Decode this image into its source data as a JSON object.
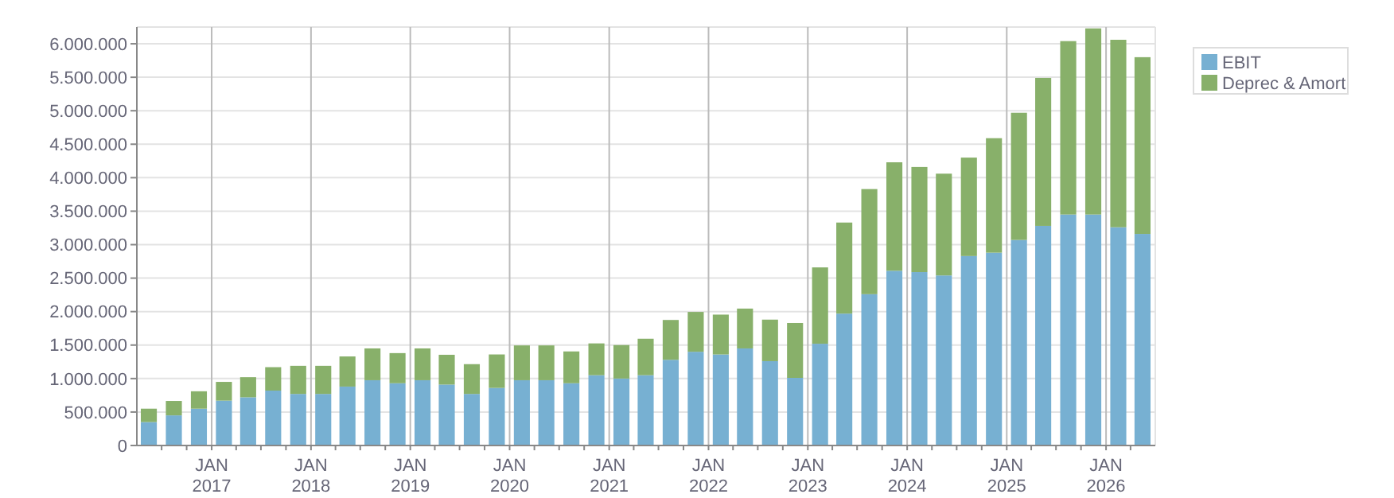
{
  "chart_data": {
    "type": "bar",
    "stacked": true,
    "x": [
      "2016-05-15",
      "2016-08-15",
      "2016-11-15",
      "2017-02-15",
      "2017-05-15",
      "2017-08-15",
      "2017-11-15",
      "2018-02-15",
      "2018-05-15",
      "2018-08-15",
      "2018-11-15",
      "2019-02-15",
      "2019-05-15",
      "2019-08-15",
      "2019-11-15",
      "2020-02-15",
      "2020-05-15",
      "2020-08-15",
      "2020-11-15",
      "2021-02-15",
      "2021-05-15",
      "2021-08-15",
      "2021-11-15",
      "2022-02-15",
      "2022-05-15",
      "2022-08-15",
      "2022-11-15",
      "2023-02-15",
      "2023-05-15",
      "2023-08-15",
      "2023-11-15",
      "2024-02-15",
      "2024-05-15",
      "2024-08-15",
      "2024-11-15",
      "2025-02-15",
      "2025-05-15",
      "2025-08-15",
      "2025-11-15",
      "2026-02-15",
      "2026-05-15"
    ],
    "series": [
      {
        "name": "EBIT",
        "color": "#77b0d2",
        "values": [
          350000,
          450000,
          550000,
          670000,
          720000,
          820000,
          770000,
          770000,
          880000,
          975000,
          930000,
          975000,
          910000,
          770000,
          860000,
          975000,
          975000,
          930000,
          1050000,
          1000000,
          1050000,
          1280000,
          1400000,
          1360000,
          1450000,
          1260000,
          1010000,
          1520000,
          1970000,
          2260000,
          2610000,
          2590000,
          2540000,
          2830000,
          2880000,
          3070000,
          3280000,
          3450000,
          3450000,
          3260000,
          3160000
        ]
      },
      {
        "name": "Deprec & Amort",
        "color": "#88b06a",
        "values": [
          200000,
          215000,
          260000,
          280000,
          300000,
          350000,
          420000,
          420000,
          450000,
          475000,
          450000,
          475000,
          445000,
          445000,
          500000,
          520000,
          520000,
          475000,
          475000,
          500000,
          545000,
          595000,
          595000,
          595000,
          595000,
          620000,
          820000,
          1140000,
          1360000,
          1570000,
          1620000,
          1570000,
          1520000,
          1470000,
          1710000,
          1900000,
          2210000,
          2590000,
          2780000,
          2800000,
          2640000
        ]
      }
    ],
    "xlim": [
      "2016-04-01",
      "2026-07-01"
    ],
    "xticks": [
      {
        "value": "2016-07-01",
        "label": null
      },
      {
        "value": "2016-10-01",
        "label": null
      },
      {
        "value": "2017-01-01",
        "label": "JAN 2017"
      },
      {
        "value": "2017-04-01",
        "label": null
      },
      {
        "value": "2017-07-01",
        "label": null
      },
      {
        "value": "2017-10-01",
        "label": null
      },
      {
        "value": "2018-01-01",
        "label": "JAN 2018"
      },
      {
        "value": "2018-04-01",
        "label": null
      },
      {
        "value": "2018-07-01",
        "label": null
      },
      {
        "value": "2018-10-01",
        "label": null
      },
      {
        "value": "2019-01-01",
        "label": "JAN 2019"
      },
      {
        "value": "2019-04-01",
        "label": null
      },
      {
        "value": "2019-07-01",
        "label": null
      },
      {
        "value": "2019-10-01",
        "label": null
      },
      {
        "value": "2020-01-01",
        "label": "JAN 2020"
      },
      {
        "value": "2020-04-01",
        "label": null
      },
      {
        "value": "2020-07-01",
        "label": null
      },
      {
        "value": "2020-10-01",
        "label": null
      },
      {
        "value": "2021-01-01",
        "label": "JAN 2021"
      },
      {
        "value": "2021-04-01",
        "label": null
      },
      {
        "value": "2021-07-01",
        "label": null
      },
      {
        "value": "2021-10-01",
        "label": null
      },
      {
        "value": "2022-01-01",
        "label": "JAN 2022"
      },
      {
        "value": "2022-04-01",
        "label": null
      },
      {
        "value": "2022-07-01",
        "label": null
      },
      {
        "value": "2022-10-01",
        "label": null
      },
      {
        "value": "2023-01-01",
        "label": "JAN 2023"
      },
      {
        "value": "2023-04-01",
        "label": null
      },
      {
        "value": "2023-07-01",
        "label": null
      },
      {
        "value": "2023-10-01",
        "label": null
      },
      {
        "value": "2024-01-01",
        "label": "JAN 2024"
      },
      {
        "value": "2024-04-01",
        "label": null
      },
      {
        "value": "2024-07-01",
        "label": null
      },
      {
        "value": "2024-10-01",
        "label": null
      },
      {
        "value": "2025-01-01",
        "label": "JAN 2025"
      },
      {
        "value": "2025-04-01",
        "label": null
      },
      {
        "value": "2025-07-01",
        "label": null
      },
      {
        "value": "2025-10-01",
        "label": null
      },
      {
        "value": "2026-01-01",
        "label": "JAN 2026"
      },
      {
        "value": "2026-04-01",
        "label": null
      }
    ],
    "ylim": [
      0,
      6250000
    ],
    "yticks": [
      {
        "value": 0,
        "label": "0"
      },
      {
        "value": 500000,
        "label": "500.000"
      },
      {
        "value": 1000000,
        "label": "1.000.000"
      },
      {
        "value": 1500000,
        "label": "1.500.000"
      },
      {
        "value": 2000000,
        "label": "2.000.000"
      },
      {
        "value": 2500000,
        "label": "2.500.000"
      },
      {
        "value": 3000000,
        "label": "3.000.000"
      },
      {
        "value": 3500000,
        "label": "3.500.000"
      },
      {
        "value": 4000000,
        "label": "4.000.000"
      },
      {
        "value": 4500000,
        "label": "4.500.000"
      },
      {
        "value": 5000000,
        "label": "5.000.000"
      },
      {
        "value": 5500000,
        "label": "5.500.000"
      },
      {
        "value": 6000000,
        "label": "6.000.000"
      }
    ],
    "grid": true,
    "legend": "top right"
  }
}
